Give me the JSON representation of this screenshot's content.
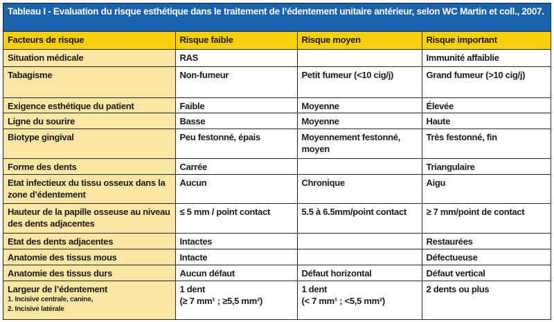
{
  "title": "Tableau I - Evaluation du risque esthétique dans le traitement de l’édentement unitaire antérieur, selon WC Martin et coll., 2007.",
  "headers": [
    "Facteurs de risque",
    "Risque faible",
    "Risque moyen",
    "Risque important"
  ],
  "rows": [
    {
      "factor": "Situation médicale",
      "low": "RAS",
      "mid": "",
      "high": "Immunité affaiblie"
    },
    {
      "factor": "Tabagisme",
      "low": "Non-fumeur",
      "mid": "Petit fumeur (<10 cig/j)",
      "high": "Grand fumeur (>10 cig/j)"
    },
    {
      "factor": "Exigence esthétique du patient",
      "low": "Faible",
      "mid": "Moyenne",
      "high": "Élevée"
    },
    {
      "factor": "Ligne du sourire",
      "low": "Basse",
      "mid": "Moyenne",
      "high": "Haute"
    },
    {
      "factor": "Biotype gingival",
      "low": "Peu festonné, épais",
      "mid": "Moyennement festonné, moyen",
      "high": "Très festonné, fin"
    },
    {
      "factor": "Forme des dents",
      "low": "Carrée",
      "mid": "",
      "high": "Triangulaire"
    },
    {
      "factor": "Etat infectieux du tissu osseux dans la zone d’édentement",
      "low": "Aucun",
      "mid": "Chronique",
      "high": "Aigu"
    },
    {
      "factor": "Hauteur de la papille osseuse au niveau des dents adjacentes",
      "low": "≤ 5 mm / point contact",
      "mid": "5.5 à 6.5mm/point contact",
      "high": "≥ 7 mm/point de contact"
    },
    {
      "factor": "Etat des dents adjacentes",
      "low": "Intactes",
      "mid": "",
      "high": "Restaurées"
    },
    {
      "factor": "Anatomie des tissus mous",
      "low": "Intacte",
      "mid": "",
      "high": "Défectueuse"
    },
    {
      "factor": "Anatomie des tissus durs",
      "low": "Aucun défaut",
      "mid": "Défaut horizontal",
      "high": "Défaut vertical"
    },
    {
      "factor": "Largeur de l’édentement",
      "note1": "1. Incisive centrale, canine,",
      "note2": "2. Incisive latérale",
      "low": "1 dent",
      "low2": "(≥ 7 mm¹ ; ≥5,5 mm²)",
      "mid": "1 dent",
      "mid2": "(< 7 mm¹ ; <5,5 mm²)",
      "high": "2 dents ou plus"
    }
  ],
  "colors": {
    "title_bg": "#1a62ad",
    "header_bg": "#f7cf0a",
    "factor_bg": "#fbe7a3"
  }
}
